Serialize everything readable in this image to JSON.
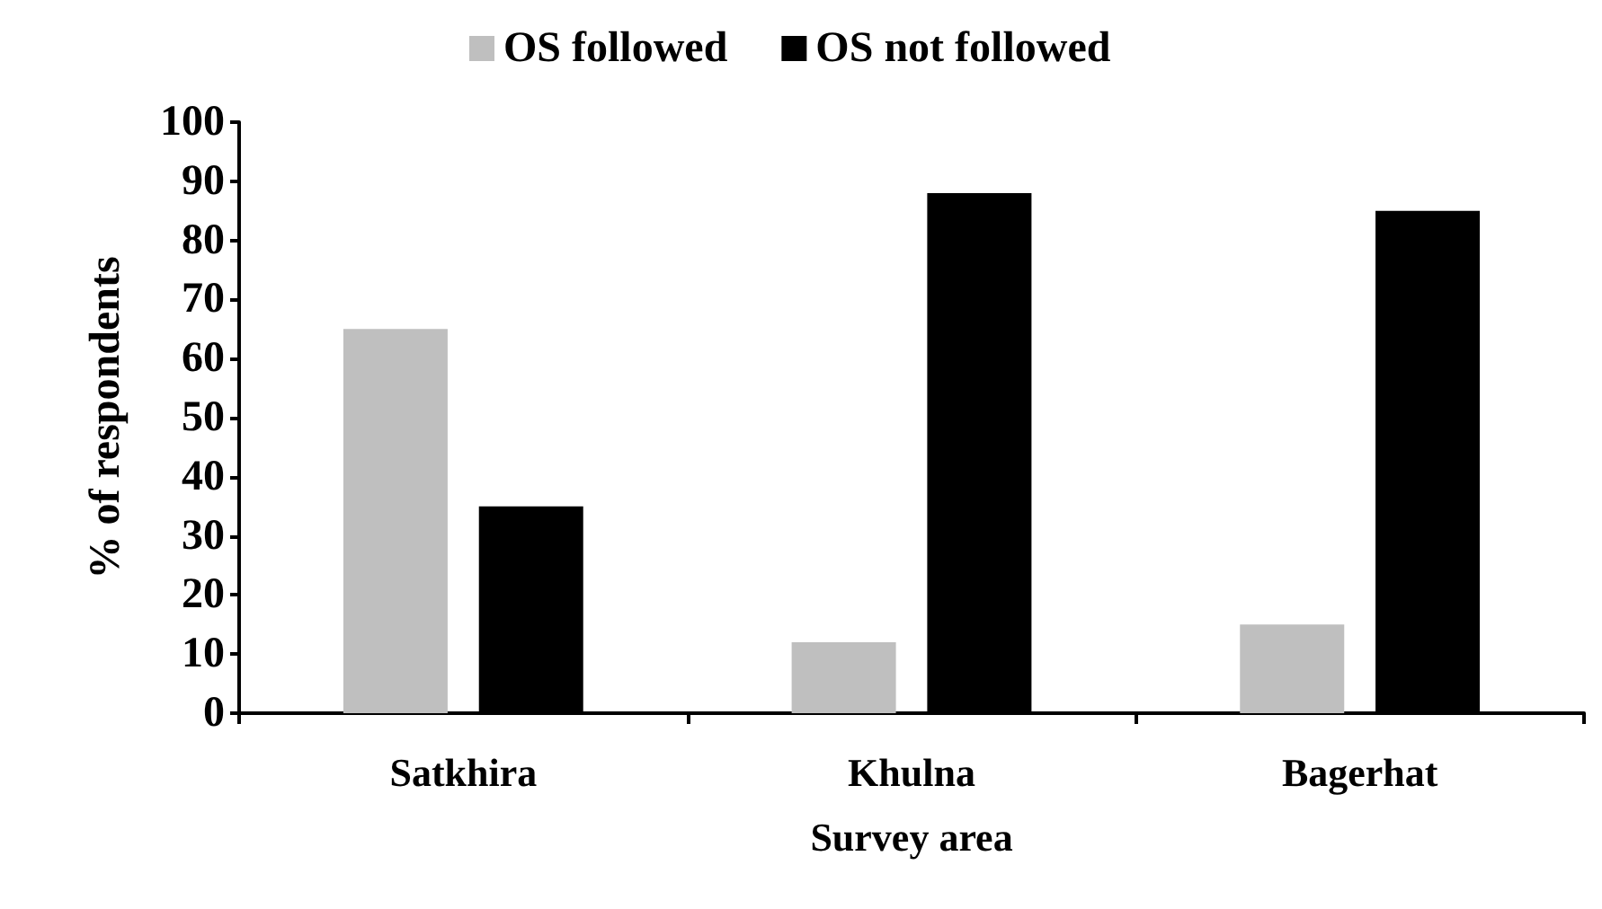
{
  "chart_data": {
    "type": "bar",
    "xlabel": "Survey area",
    "ylabel": "% of respondents",
    "categories": [
      "Satkhira",
      "Khulna",
      "Bagerhat"
    ],
    "series": [
      {
        "name": "OS followed",
        "color": "#bfbfbf",
        "values": [
          65,
          12,
          15
        ]
      },
      {
        "name": "OS not followed",
        "color": "#000000",
        "values": [
          35,
          88,
          85
        ]
      }
    ],
    "ylim": [
      0,
      100
    ],
    "yticks": [
      0,
      10,
      20,
      30,
      40,
      50,
      60,
      70,
      80,
      90,
      100
    ],
    "grid": false,
    "legend": "top"
  }
}
